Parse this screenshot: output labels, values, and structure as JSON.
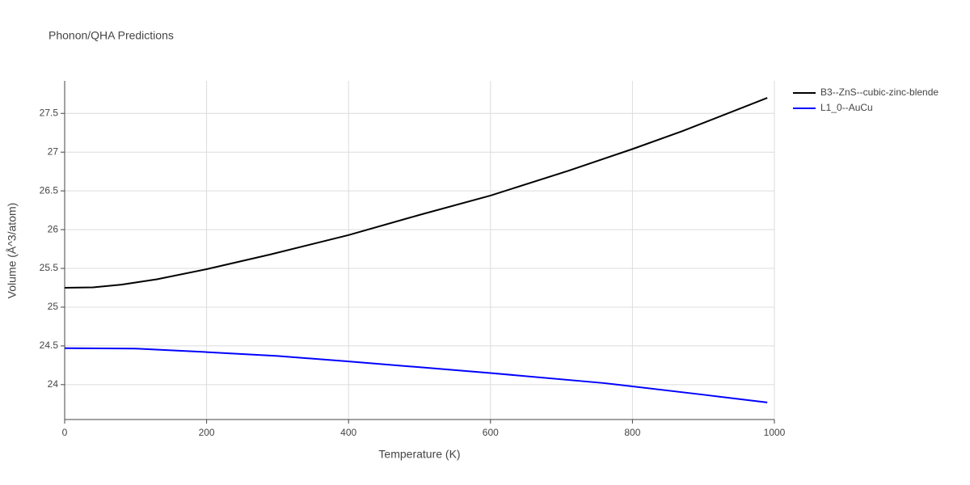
{
  "chart_data": {
    "type": "line",
    "title": "Phonon/QHA Predictions",
    "x_label": "Temperature (K)",
    "y_label": "Volume (Å^3/atom)",
    "xlim": [
      0,
      1000
    ],
    "xticks": [
      0,
      200,
      400,
      600,
      800,
      1000
    ],
    "ylim": [
      23.55,
      27.92
    ],
    "yticks": [
      24,
      24.5,
      25,
      25.5,
      26,
      26.5,
      27,
      27.5
    ],
    "grid": true,
    "legend": "top-right",
    "series": [
      {
        "name": "B3--ZnS--cubic-zinc-blende",
        "color": "#000000",
        "x": [
          0,
          40,
          80,
          130,
          200,
          290,
          400,
          500,
          600,
          710,
          800,
          870,
          990
        ],
        "values": [
          25.25,
          25.255,
          25.29,
          25.36,
          25.49,
          25.68,
          25.93,
          26.19,
          26.44,
          26.76,
          27.04,
          27.27,
          27.7
        ]
      },
      {
        "name": "L1_0--AuCu",
        "color": "#0000ff",
        "x": [
          0,
          100,
          200,
          300,
          400,
          500,
          600,
          760,
          900,
          990
        ],
        "values": [
          24.47,
          24.465,
          24.42,
          24.37,
          24.3,
          24.225,
          24.15,
          24.02,
          23.87,
          23.77
        ]
      }
    ]
  }
}
